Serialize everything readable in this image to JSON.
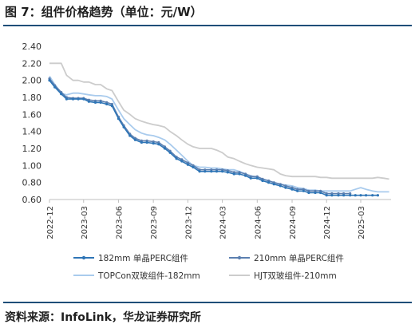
{
  "figure": {
    "title": "图 7：组件价格趋势（单位：元/W）",
    "source": "资料来源：InfoLink，华龙证券研究所"
  },
  "chart_data": {
    "type": "line",
    "ylim": [
      0.6,
      2.4
    ],
    "yticks": [
      "2.40",
      "2.20",
      "2.00",
      "1.80",
      "1.60",
      "1.40",
      "1.20",
      "1.00",
      "0.80",
      "0.60"
    ],
    "xticks": [
      "2022-12",
      "2023-03",
      "2023-06",
      "2023-09",
      "2023-12",
      "2024-03",
      "2024-06",
      "2024-09",
      "2024-12",
      "2025-03"
    ],
    "grid": false,
    "legend_position": "bottom",
    "series": [
      {
        "name": "182mm 单晶PERC组件",
        "color": "#2e75b6",
        "marker": true,
        "points": [
          [
            "2022-12-01",
            2.0
          ],
          [
            "2022-12-15",
            1.92
          ],
          [
            "2023-01-01",
            1.84
          ],
          [
            "2023-01-15",
            1.78
          ],
          [
            "2023-02-01",
            1.78
          ],
          [
            "2023-02-15",
            1.78
          ],
          [
            "2023-03-01",
            1.78
          ],
          [
            "2023-03-15",
            1.75
          ],
          [
            "2023-04-01",
            1.74
          ],
          [
            "2023-04-15",
            1.74
          ],
          [
            "2023-05-01",
            1.72
          ],
          [
            "2023-05-15",
            1.7
          ],
          [
            "2023-06-01",
            1.55
          ],
          [
            "2023-06-15",
            1.45
          ],
          [
            "2023-07-01",
            1.35
          ],
          [
            "2023-07-15",
            1.3
          ],
          [
            "2023-08-01",
            1.27
          ],
          [
            "2023-08-15",
            1.27
          ],
          [
            "2023-09-01",
            1.26
          ],
          [
            "2023-09-15",
            1.25
          ],
          [
            "2023-10-01",
            1.2
          ],
          [
            "2023-10-15",
            1.15
          ],
          [
            "2023-11-01",
            1.08
          ],
          [
            "2023-11-15",
            1.05
          ],
          [
            "2023-12-01",
            1.01
          ],
          [
            "2023-12-15",
            0.98
          ],
          [
            "2024-01-01",
            0.93
          ],
          [
            "2024-01-15",
            0.93
          ],
          [
            "2024-02-01",
            0.93
          ],
          [
            "2024-02-15",
            0.93
          ],
          [
            "2024-03-01",
            0.93
          ],
          [
            "2024-03-15",
            0.92
          ],
          [
            "2024-04-01",
            0.9
          ],
          [
            "2024-04-15",
            0.9
          ],
          [
            "2024-05-01",
            0.88
          ],
          [
            "2024-05-15",
            0.85
          ],
          [
            "2024-06-01",
            0.85
          ],
          [
            "2024-06-15",
            0.82
          ],
          [
            "2024-07-01",
            0.8
          ],
          [
            "2024-07-15",
            0.78
          ],
          [
            "2024-08-01",
            0.76
          ],
          [
            "2024-08-15",
            0.74
          ],
          [
            "2024-09-01",
            0.72
          ],
          [
            "2024-09-15",
            0.7
          ],
          [
            "2024-10-01",
            0.7
          ],
          [
            "2024-10-15",
            0.68
          ],
          [
            "2024-11-01",
            0.68
          ],
          [
            "2024-11-15",
            0.68
          ],
          [
            "2024-12-01",
            0.65
          ],
          [
            "2024-12-15",
            0.65
          ],
          [
            "2025-01-01",
            0.65
          ],
          [
            "2025-01-15",
            0.65
          ],
          [
            "2025-02-01",
            0.65
          ],
          [
            "2025-02-15",
            0.65
          ],
          [
            "2025-03-01",
            0.65
          ],
          [
            "2025-03-15",
            0.65
          ],
          [
            "2025-04-01",
            0.65
          ],
          [
            "2025-04-15",
            0.65
          ]
        ]
      },
      {
        "name": "210mm 单晶PERC组件",
        "color": "#5b7fb0",
        "marker": true,
        "points": [
          [
            "2022-12-01",
            2.02
          ],
          [
            "2022-12-15",
            1.94
          ],
          [
            "2023-01-01",
            1.86
          ],
          [
            "2023-01-15",
            1.8
          ],
          [
            "2023-02-01",
            1.79
          ],
          [
            "2023-02-15",
            1.79
          ],
          [
            "2023-03-01",
            1.79
          ],
          [
            "2023-03-15",
            1.77
          ],
          [
            "2023-04-01",
            1.76
          ],
          [
            "2023-04-15",
            1.76
          ],
          [
            "2023-05-01",
            1.74
          ],
          [
            "2023-05-15",
            1.72
          ],
          [
            "2023-06-01",
            1.57
          ],
          [
            "2023-06-15",
            1.47
          ],
          [
            "2023-07-01",
            1.37
          ],
          [
            "2023-07-15",
            1.32
          ],
          [
            "2023-08-01",
            1.29
          ],
          [
            "2023-08-15",
            1.29
          ],
          [
            "2023-09-01",
            1.28
          ],
          [
            "2023-09-15",
            1.27
          ],
          [
            "2023-10-01",
            1.22
          ],
          [
            "2023-10-15",
            1.17
          ],
          [
            "2023-11-01",
            1.1
          ],
          [
            "2023-11-15",
            1.07
          ],
          [
            "2023-12-01",
            1.03
          ],
          [
            "2023-12-15",
            1.0
          ],
          [
            "2024-01-01",
            0.95
          ],
          [
            "2024-01-15",
            0.95
          ],
          [
            "2024-02-01",
            0.95
          ],
          [
            "2024-02-15",
            0.95
          ],
          [
            "2024-03-01",
            0.95
          ],
          [
            "2024-03-15",
            0.94
          ],
          [
            "2024-04-01",
            0.92
          ],
          [
            "2024-04-15",
            0.92
          ],
          [
            "2024-05-01",
            0.9
          ],
          [
            "2024-05-15",
            0.87
          ],
          [
            "2024-06-01",
            0.87
          ],
          [
            "2024-06-15",
            0.84
          ],
          [
            "2024-07-01",
            0.82
          ],
          [
            "2024-07-15",
            0.8
          ],
          [
            "2024-08-01",
            0.78
          ],
          [
            "2024-08-15",
            0.76
          ],
          [
            "2024-09-01",
            0.74
          ],
          [
            "2024-09-15",
            0.72
          ],
          [
            "2024-10-01",
            0.72
          ],
          [
            "2024-10-15",
            0.7
          ],
          [
            "2024-11-01",
            0.7
          ],
          [
            "2024-11-15",
            0.7
          ],
          [
            "2024-12-01",
            0.67
          ],
          [
            "2024-12-15",
            0.67
          ],
          [
            "2025-01-01",
            0.67
          ],
          [
            "2025-01-15",
            0.67
          ],
          [
            "2025-02-01",
            0.67
          ]
        ]
      },
      {
        "name": "TOPCon双玻组件-182mm",
        "color": "#a9cbed",
        "marker": false,
        "points": [
          [
            "2022-12-01",
            2.05
          ],
          [
            "2022-12-15",
            1.95
          ],
          [
            "2023-01-01",
            1.85
          ],
          [
            "2023-01-15",
            1.83
          ],
          [
            "2023-02-01",
            1.85
          ],
          [
            "2023-02-15",
            1.85
          ],
          [
            "2023-03-01",
            1.84
          ],
          [
            "2023-03-15",
            1.83
          ],
          [
            "2023-04-01",
            1.82
          ],
          [
            "2023-04-15",
            1.82
          ],
          [
            "2023-05-01",
            1.81
          ],
          [
            "2023-05-15",
            1.78
          ],
          [
            "2023-06-01",
            1.65
          ],
          [
            "2023-06-15",
            1.55
          ],
          [
            "2023-07-01",
            1.48
          ],
          [
            "2023-07-15",
            1.42
          ],
          [
            "2023-08-01",
            1.38
          ],
          [
            "2023-08-15",
            1.36
          ],
          [
            "2023-09-01",
            1.35
          ],
          [
            "2023-09-15",
            1.33
          ],
          [
            "2023-10-01",
            1.3
          ],
          [
            "2023-10-15",
            1.25
          ],
          [
            "2023-11-01",
            1.18
          ],
          [
            "2023-11-15",
            1.12
          ],
          [
            "2023-12-01",
            1.05
          ],
          [
            "2023-12-15",
            1.0
          ],
          [
            "2024-01-01",
            0.98
          ],
          [
            "2024-01-15",
            0.98
          ],
          [
            "2024-02-01",
            0.97
          ],
          [
            "2024-02-15",
            0.97
          ],
          [
            "2024-03-01",
            0.96
          ],
          [
            "2024-03-15",
            0.95
          ],
          [
            "2024-04-01",
            0.95
          ],
          [
            "2024-04-15",
            0.93
          ],
          [
            "2024-05-01",
            0.9
          ],
          [
            "2024-05-15",
            0.88
          ],
          [
            "2024-06-01",
            0.86
          ],
          [
            "2024-06-15",
            0.84
          ],
          [
            "2024-07-01",
            0.82
          ],
          [
            "2024-07-15",
            0.8
          ],
          [
            "2024-08-01",
            0.78
          ],
          [
            "2024-08-15",
            0.77
          ],
          [
            "2024-09-01",
            0.76
          ],
          [
            "2024-09-15",
            0.74
          ],
          [
            "2024-10-01",
            0.73
          ],
          [
            "2024-10-15",
            0.71
          ],
          [
            "2024-11-01",
            0.71
          ],
          [
            "2024-11-15",
            0.7
          ],
          [
            "2024-12-01",
            0.7
          ],
          [
            "2024-12-15",
            0.7
          ],
          [
            "2025-01-01",
            0.7
          ],
          [
            "2025-01-15",
            0.7
          ],
          [
            "2025-02-01",
            0.7
          ],
          [
            "2025-02-15",
            0.72
          ],
          [
            "2025-03-01",
            0.74
          ],
          [
            "2025-03-15",
            0.72
          ],
          [
            "2025-04-01",
            0.7
          ],
          [
            "2025-04-15",
            0.69
          ],
          [
            "2025-05-01",
            0.69
          ],
          [
            "2025-05-15",
            0.69
          ]
        ]
      },
      {
        "name": "HJT双玻组件-210mm",
        "color": "#cccccc",
        "marker": false,
        "points": [
          [
            "2022-12-01",
            2.2
          ],
          [
            "2022-12-15",
            2.2
          ],
          [
            "2023-01-01",
            2.2
          ],
          [
            "2023-01-15",
            2.06
          ],
          [
            "2023-02-01",
            2.0
          ],
          [
            "2023-02-15",
            2.0
          ],
          [
            "2023-03-01",
            1.98
          ],
          [
            "2023-03-15",
            1.98
          ],
          [
            "2023-04-01",
            1.95
          ],
          [
            "2023-04-15",
            1.95
          ],
          [
            "2023-05-01",
            1.9
          ],
          [
            "2023-05-15",
            1.88
          ],
          [
            "2023-06-01",
            1.75
          ],
          [
            "2023-06-15",
            1.65
          ],
          [
            "2023-07-01",
            1.6
          ],
          [
            "2023-07-15",
            1.55
          ],
          [
            "2023-08-01",
            1.52
          ],
          [
            "2023-08-15",
            1.5
          ],
          [
            "2023-09-01",
            1.48
          ],
          [
            "2023-09-15",
            1.47
          ],
          [
            "2023-10-01",
            1.45
          ],
          [
            "2023-10-15",
            1.4
          ],
          [
            "2023-11-01",
            1.35
          ],
          [
            "2023-11-15",
            1.3
          ],
          [
            "2023-12-01",
            1.25
          ],
          [
            "2023-12-15",
            1.22
          ],
          [
            "2024-01-01",
            1.2
          ],
          [
            "2024-01-15",
            1.2
          ],
          [
            "2024-02-01",
            1.2
          ],
          [
            "2024-02-15",
            1.18
          ],
          [
            "2024-03-01",
            1.15
          ],
          [
            "2024-03-15",
            1.1
          ],
          [
            "2024-04-01",
            1.08
          ],
          [
            "2024-04-15",
            1.05
          ],
          [
            "2024-05-01",
            1.02
          ],
          [
            "2024-05-15",
            1.0
          ],
          [
            "2024-06-01",
            0.98
          ],
          [
            "2024-06-15",
            0.97
          ],
          [
            "2024-07-01",
            0.96
          ],
          [
            "2024-07-15",
            0.95
          ],
          [
            "2024-08-01",
            0.9
          ],
          [
            "2024-08-15",
            0.88
          ],
          [
            "2024-09-01",
            0.87
          ],
          [
            "2024-09-15",
            0.87
          ],
          [
            "2024-10-01",
            0.87
          ],
          [
            "2024-10-15",
            0.87
          ],
          [
            "2024-11-01",
            0.87
          ],
          [
            "2024-11-15",
            0.86
          ],
          [
            "2024-12-01",
            0.86
          ],
          [
            "2024-12-15",
            0.85
          ],
          [
            "2025-01-01",
            0.85
          ],
          [
            "2025-01-15",
            0.85
          ],
          [
            "2025-02-01",
            0.85
          ],
          [
            "2025-02-15",
            0.85
          ],
          [
            "2025-03-01",
            0.85
          ],
          [
            "2025-03-15",
            0.85
          ],
          [
            "2025-04-01",
            0.85
          ],
          [
            "2025-04-15",
            0.86
          ],
          [
            "2025-05-01",
            0.85
          ],
          [
            "2025-05-15",
            0.84
          ]
        ]
      }
    ]
  }
}
